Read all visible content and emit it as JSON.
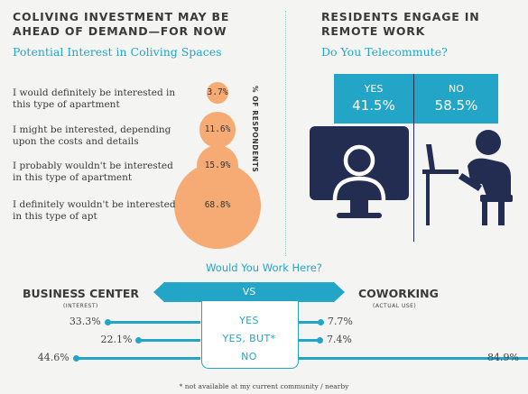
{
  "left_panel": {
    "title_line1": "COLIVING INVESTMENT MAY BE",
    "title_line2": "AHEAD OF DEMAND—FOR NOW",
    "subtitle": "Potential Interest in Coliving Spaces",
    "axis_label": "% OF RESPONDENTS"
  },
  "right_panel": {
    "title_line1": "RESIDENTS ENGAGE IN",
    "title_line2": "REMOTE WORK",
    "subtitle": "Do You Telecommute?"
  },
  "bottom_panel": {
    "title": "Would You Work Here?",
    "left_heading": "BUSINESS CENTER",
    "left_sub": "(INTEREST)",
    "right_heading": "COWORKING",
    "right_sub": "(ACTUAL USE)",
    "vs": "VS",
    "footnote": "* not available at my current community / nearby"
  },
  "colors": {
    "accent": "#23a5c8",
    "bubble": "#f5ab73",
    "dark": "#232d52"
  },
  "icons": [
    "monitor-person-icon",
    "desk-person-icon"
  ],
  "chart_data": [
    {
      "type": "bubble",
      "categories": [
        "I would definitely be interested in this type of apartment",
        "I might be interested, depending upon the costs and details",
        "I probably wouldn't be interested in this type of apartment",
        "I definitely wouldn't be interested in this type of apt"
      ],
      "values": [
        3.7,
        11.6,
        15.9,
        68.8
      ],
      "labels": [
        "3.7%",
        "11.6%",
        "15.9%",
        "68.8%"
      ]
    },
    {
      "type": "bar",
      "categories": [
        "YES",
        "NO"
      ],
      "values": [
        41.5,
        58.5
      ],
      "labels": [
        "41.5%",
        "58.5%"
      ]
    },
    {
      "type": "bar",
      "categories": [
        "YES",
        "YES, BUT*",
        "NO"
      ],
      "series": [
        {
          "name": "BUSINESS CENTER",
          "values": [
            33.3,
            22.1,
            44.6
          ],
          "labels": [
            "33.3%",
            "22.1%",
            "44.6%"
          ]
        },
        {
          "name": "COWORKING",
          "values": [
            7.7,
            7.4,
            84.9
          ],
          "labels": [
            "7.7%",
            "7.4%",
            "84.9%"
          ]
        }
      ]
    }
  ]
}
